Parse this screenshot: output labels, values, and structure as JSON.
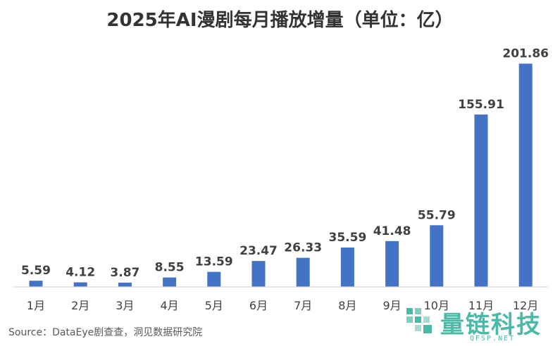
{
  "chart_data": {
    "type": "bar",
    "title": "2025年AI漫剧每月播放增量（单位：亿）",
    "categories": [
      "1月",
      "2月",
      "3月",
      "4月",
      "5月",
      "6月",
      "7月",
      "8月",
      "9月",
      "10月",
      "11月",
      "12月"
    ],
    "values": [
      5.59,
      4.12,
      3.87,
      8.55,
      13.59,
      23.47,
      26.33,
      35.59,
      41.48,
      55.79,
      155.91,
      201.86
    ],
    "value_labels": [
      "5.59",
      "4.12",
      "3.87",
      "8.55",
      "13.59",
      "23.47",
      "26.33",
      "35.59",
      "41.48",
      "55.79",
      "155.91",
      "201.86"
    ],
    "ylim": [
      0,
      220
    ],
    "grid": false,
    "legend": "none",
    "bar_color": "#4472c4"
  },
  "source": "Source：DataEye剧查查，洞见数据研究院",
  "watermark": {
    "text": "量链科技",
    "sub": "QFSP.NET",
    "color": "#4ab9a8"
  }
}
